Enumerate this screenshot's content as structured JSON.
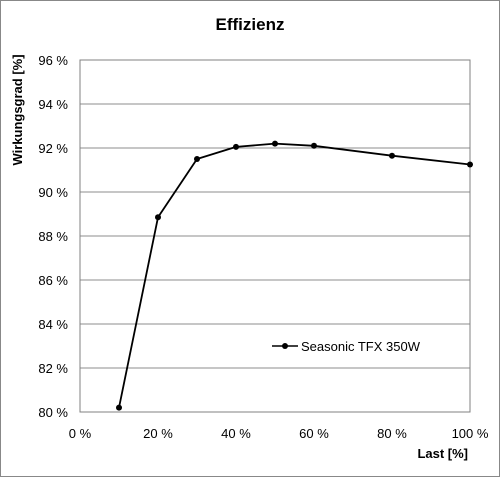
{
  "chart_data": {
    "type": "line",
    "title": "Effizienz",
    "xlabel": "Last [%]",
    "ylabel": "Wirkungsgrad [%]",
    "xlim": [
      0,
      100
    ],
    "ylim": [
      80,
      96
    ],
    "x_ticks": [
      0,
      20,
      40,
      60,
      80,
      100
    ],
    "y_ticks": [
      80,
      82,
      84,
      86,
      88,
      90,
      92,
      94,
      96
    ],
    "x_tick_labels": [
      "0 %",
      "20 %",
      "40 %",
      "60 %",
      "80 %",
      "100 %"
    ],
    "y_tick_labels": [
      "80 %",
      "82 %",
      "84 %",
      "86 %",
      "88 %",
      "90 %",
      "92 %",
      "94 %",
      "96 %"
    ],
    "grid": "horizontal",
    "legend_position": "inside-lower-right",
    "series": [
      {
        "name": "Seasonic TFX 350W",
        "color": "#000000",
        "x": [
          10,
          20,
          30,
          40,
          50,
          60,
          80,
          100
        ],
        "y": [
          80.2,
          88.85,
          91.5,
          92.05,
          92.2,
          92.1,
          91.65,
          91.25
        ]
      }
    ]
  }
}
